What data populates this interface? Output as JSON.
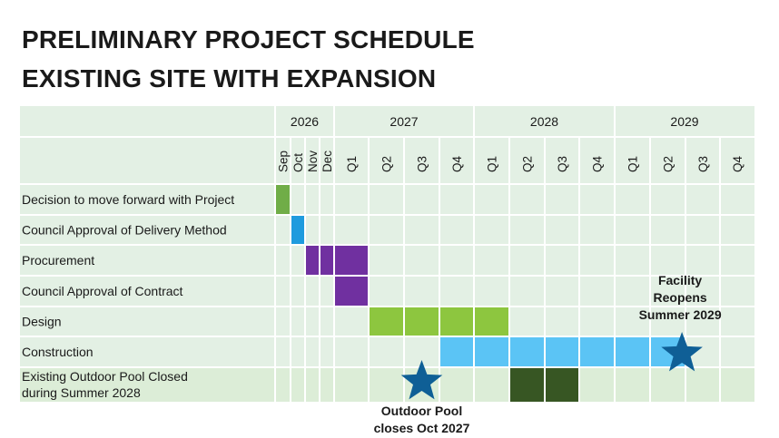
{
  "title_lines": [
    "PRELIMINARY PROJECT SCHEDULE",
    "EXISTING SITE WITH EXPANSION"
  ],
  "chart_data": {
    "type": "gantt",
    "periods": [
      "Sep",
      "Oct",
      "Nov",
      "Dec",
      "Q1",
      "Q2",
      "Q3",
      "Q4",
      "Q1",
      "Q2",
      "Q3",
      "Q4",
      "Q1",
      "Q2",
      "Q3",
      "Q4"
    ],
    "years": [
      {
        "label": "2026",
        "start": 0,
        "span": 4
      },
      {
        "label": "2027",
        "start": 4,
        "span": 4
      },
      {
        "label": "2028",
        "start": 8,
        "span": 4
      },
      {
        "label": "2029",
        "start": 12,
        "span": 4
      }
    ],
    "tasks": [
      {
        "label": "Decision to move forward with Project",
        "bars": [
          {
            "start": 0,
            "span": 1,
            "color": "#70ad47"
          }
        ]
      },
      {
        "label": "Council Approval of Delivery Method",
        "bars": [
          {
            "start": 1,
            "span": 1,
            "color": "#1f9bde"
          }
        ]
      },
      {
        "label": "Procurement",
        "bars": [
          {
            "start": 2,
            "span": 1,
            "color": "#7030a0"
          },
          {
            "start": 3,
            "span": 1,
            "color": "#7030a0"
          },
          {
            "start": 4,
            "span": 1,
            "color": "#7030a0"
          }
        ]
      },
      {
        "label": "Council Approval of Contract",
        "bars": [
          {
            "start": 4,
            "span": 1,
            "color": "#7030a0"
          }
        ]
      },
      {
        "label": "Design",
        "bars": [
          {
            "start": 5,
            "span": 1,
            "color": "#8dc63f"
          },
          {
            "start": 6,
            "span": 1,
            "color": "#8dc63f"
          },
          {
            "start": 7,
            "span": 1,
            "color": "#8dc63f"
          },
          {
            "start": 8,
            "span": 1,
            "color": "#8dc63f"
          }
        ]
      },
      {
        "label": "Construction",
        "bars": [
          {
            "start": 7,
            "span": 1,
            "color": "#5bc4f5"
          },
          {
            "start": 8,
            "span": 1,
            "color": "#5bc4f5"
          },
          {
            "start": 9,
            "span": 1,
            "color": "#5bc4f5"
          },
          {
            "start": 10,
            "span": 1,
            "color": "#5bc4f5"
          },
          {
            "start": 11,
            "span": 1,
            "color": "#5bc4f5"
          },
          {
            "start": 12,
            "span": 1,
            "color": "#5bc4f5"
          },
          {
            "start": 13,
            "span": 1,
            "color": "#5bc4f5"
          }
        ]
      },
      {
        "label": "Existing Outdoor Pool Closed\nduring Summer 2028",
        "bars": [
          {
            "start": 9,
            "span": 1,
            "color": "#375623"
          },
          {
            "start": 10,
            "span": 1,
            "color": "#375623"
          }
        ]
      }
    ],
    "milestones": [
      {
        "period": 6,
        "row": 6,
        "color": "#0f5f96",
        "label_lines": [
          "Outdoor Pool",
          "closes Oct 2027"
        ],
        "label_position": "below"
      },
      {
        "period": 13.9,
        "row": 5,
        "color": "#0f5f96",
        "label_lines": [
          "Facility",
          "Reopens",
          "Summer 2029"
        ],
        "label_position": "above"
      }
    ],
    "colors": {
      "grid_background": "#e3f0e4",
      "last_row_background": "#dcedd7",
      "gridlines": "#ffffff"
    }
  }
}
